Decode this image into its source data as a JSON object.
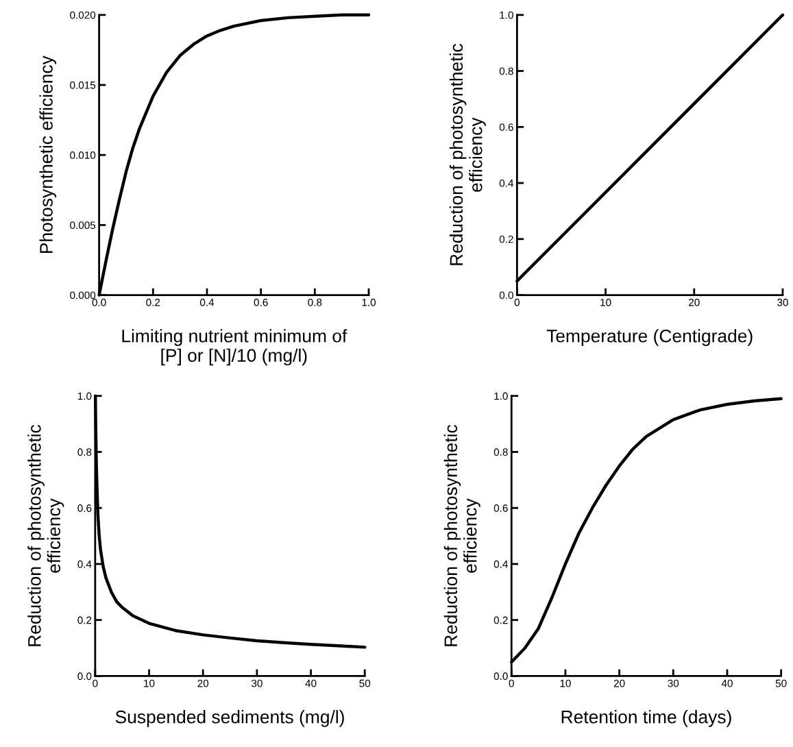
{
  "chart_data": [
    {
      "type": "line",
      "xlabel": "Limiting nutrient minimum of\n[P] or [N]/10 (mg/l)",
      "ylabel": "Photosynthetic efficiency",
      "color": "#000000",
      "marker": "none",
      "line_style": "solid",
      "grid": false,
      "x": [
        0,
        0.025,
        0.05,
        0.075,
        0.1,
        0.125,
        0.15,
        0.2,
        0.25,
        0.3,
        0.35,
        0.4,
        0.45,
        0.5,
        0.6,
        0.7,
        0.8,
        0.9,
        1.0
      ],
      "values": [
        0,
        0.0024,
        0.0047,
        0.0068,
        0.0088,
        0.0105,
        0.0119,
        0.0142,
        0.0159,
        0.0171,
        0.0179,
        0.0185,
        0.0189,
        0.0192,
        0.0196,
        0.0198,
        0.0199,
        0.02,
        0.02
      ],
      "xlim": [
        0,
        1.0
      ],
      "xticks": [
        {
          "value": 0,
          "label": "0.0"
        },
        0.2,
        0.4,
        0.6,
        0.8,
        {
          "value": 1,
          "label": "1.0"
        }
      ],
      "ylim": [
        0,
        0.02
      ],
      "yticks": [
        {
          "value": 0,
          "label": "0.000"
        },
        {
          "value": 0.005,
          "label": "0.005"
        },
        {
          "value": 0.01,
          "label": "0.010"
        },
        {
          "value": 0.015,
          "label": "0.015"
        },
        {
          "value": 0.02,
          "label": "0.020"
        }
      ]
    },
    {
      "type": "line",
      "xlabel": "Temperature (Centigrade)",
      "ylabel": "Reduction of photosynthetic\nefficiency",
      "color": "#000000",
      "marker": "none",
      "line_style": "solid",
      "grid": false,
      "x": [
        0,
        30
      ],
      "values": [
        0.05,
        1.0
      ],
      "xlim": [
        0,
        30
      ],
      "xticks": [
        0,
        10,
        20,
        30
      ],
      "ylim": [
        0,
        1.0
      ],
      "yticks": [
        {
          "value": 0,
          "label": "0.0"
        },
        0.2,
        0.4,
        0.6,
        0.8,
        {
          "value": 1,
          "label": "1.0"
        }
      ]
    },
    {
      "type": "line",
      "xlabel": "Suspended sediments (mg/l)",
      "ylabel": "Reduction of photosynthetic\nefficiency",
      "color": "#000000",
      "marker": "none",
      "line_style": "solid",
      "grid": false,
      "x": [
        0.05,
        0.1,
        0.2,
        0.3,
        0.5,
        0.75,
        1,
        1.5,
        2,
        3,
        4,
        5,
        7,
        10,
        15,
        20,
        25,
        30,
        35,
        40,
        45,
        50
      ],
      "values": [
        1.0,
        0.9,
        0.78,
        0.7,
        0.58,
        0.5,
        0.45,
        0.39,
        0.35,
        0.3,
        0.265,
        0.245,
        0.215,
        0.188,
        0.162,
        0.147,
        0.136,
        0.126,
        0.119,
        0.113,
        0.108,
        0.103
      ],
      "xlim": [
        0,
        50
      ],
      "xticks": [
        0,
        10,
        20,
        30,
        40,
        50
      ],
      "ylim": [
        0,
        1.0
      ],
      "yticks": [
        {
          "value": 0,
          "label": "0.0"
        },
        0.2,
        0.4,
        0.6,
        0.8,
        {
          "value": 1,
          "label": "1.0"
        }
      ]
    },
    {
      "type": "line",
      "xlabel": "Retention time (days)",
      "ylabel": "Reduction of photosynthetic\nefficiency",
      "color": "#000000",
      "marker": "none",
      "line_style": "solid",
      "grid": false,
      "x": [
        0,
        2.5,
        5,
        7.5,
        10,
        12.5,
        15,
        17.5,
        20,
        22.5,
        25,
        30,
        35,
        40,
        45,
        50
      ],
      "values": [
        0.05,
        0.1,
        0.17,
        0.28,
        0.4,
        0.51,
        0.6,
        0.68,
        0.75,
        0.81,
        0.855,
        0.915,
        0.95,
        0.97,
        0.982,
        0.99
      ],
      "xlim": [
        0,
        50
      ],
      "xticks": [
        0,
        10,
        20,
        30,
        40,
        50
      ],
      "ylim": [
        0,
        1.0
      ],
      "yticks": [
        {
          "value": 0,
          "label": "0.0"
        },
        0.2,
        0.4,
        0.6,
        0.8,
        {
          "value": 1,
          "label": "1.0"
        }
      ]
    }
  ]
}
